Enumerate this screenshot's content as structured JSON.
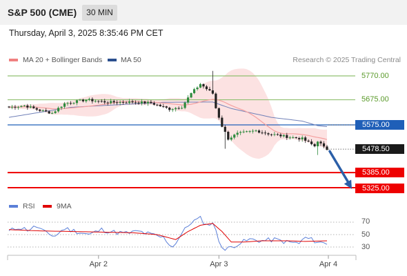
{
  "header": {
    "instrument": "S&P 500 (CME)",
    "timeframe": "30 MIN"
  },
  "datetime": "Thursday, April 3, 2025 8:35:46 PM CET",
  "copyright": "Research © 2025 Trading Central",
  "colors": {
    "ma20": "#f08080",
    "ma50": "#2b4f8e",
    "rsi": "#5b7fd8",
    "rsi_ma": "#e00000",
    "resistance": "#90c070",
    "support": "#ee0000",
    "pivot": "#1f5fb8",
    "up": "#2e8b3e",
    "down": "#222222",
    "arrow": "#2b5fa8",
    "price_badge": "#1a1a1a"
  },
  "chart_data": [
    {
      "type": "candlestick",
      "legend": [
        {
          "label": "MA 20 + Bollinger Bands",
          "color": "#f08080"
        },
        {
          "label": "MA 50",
          "color": "#2b4f8e"
        }
      ],
      "x_ticks": [
        {
          "label": "Apr 2",
          "index": 29
        },
        {
          "label": "Apr 3",
          "index": 68
        },
        {
          "label": "Apr 4",
          "index": 103
        }
      ],
      "n_bars": 104,
      "ylim": [
        5290,
        5800
      ],
      "levels": [
        {
          "label": "5770.00",
          "value": 5770,
          "kind": "resistance"
        },
        {
          "label": "5675.00",
          "value": 5675,
          "kind": "resistance"
        },
        {
          "label": "5575.00",
          "value": 5575,
          "kind": "pivot"
        },
        {
          "label": "5385.00",
          "value": 5385,
          "kind": "support"
        },
        {
          "label": "5325.00",
          "value": 5325,
          "kind": "support"
        }
      ],
      "last_price": {
        "label": "5478.50",
        "value": 5478.5
      },
      "projection": {
        "from_value": 5470,
        "to_value": 5320
      },
      "close_anchors": [
        [
          0,
          5645
        ],
        [
          5,
          5652
        ],
        [
          10,
          5633
        ],
        [
          14,
          5622
        ],
        [
          18,
          5660
        ],
        [
          25,
          5675
        ],
        [
          32,
          5665
        ],
        [
          40,
          5666
        ],
        [
          46,
          5662
        ],
        [
          52,
          5638
        ],
        [
          56,
          5647
        ],
        [
          59,
          5700
        ],
        [
          62,
          5738
        ],
        [
          64,
          5718
        ],
        [
          66,
          5700
        ],
        [
          67,
          5642
        ],
        [
          69,
          5570
        ],
        [
          71,
          5520
        ],
        [
          74,
          5540
        ],
        [
          80,
          5552
        ],
        [
          84,
          5540
        ],
        [
          90,
          5528
        ],
        [
          95,
          5520
        ],
        [
          99,
          5490
        ],
        [
          100,
          5512
        ],
        [
          102,
          5485
        ],
        [
          103,
          5478
        ]
      ],
      "ma50_anchors": [
        [
          0,
          5605
        ],
        [
          20,
          5645
        ],
        [
          50,
          5665
        ],
        [
          66,
          5666
        ],
        [
          72,
          5640
        ],
        [
          85,
          5605
        ],
        [
          95,
          5590
        ],
        [
          100,
          5572
        ],
        [
          103,
          5568
        ]
      ]
    },
    {
      "type": "line",
      "legend": [
        {
          "label": "RSI",
          "color": "#5b7fd8"
        },
        {
          "label": "9MA",
          "color": "#e00000"
        }
      ],
      "yticks": [
        {
          "label": "70",
          "value": 70
        },
        {
          "label": "50",
          "value": 50
        },
        {
          "label": "30",
          "value": 30
        }
      ],
      "ylim": [
        15,
        85
      ],
      "rsi_anchors": [
        [
          0,
          55
        ],
        [
          3,
          62
        ],
        [
          6,
          58
        ],
        [
          9,
          63
        ],
        [
          12,
          52
        ],
        [
          15,
          48
        ],
        [
          18,
          60
        ],
        [
          22,
          55
        ],
        [
          26,
          50
        ],
        [
          30,
          58
        ],
        [
          34,
          54
        ],
        [
          38,
          52
        ],
        [
          42,
          55
        ],
        [
          46,
          50
        ],
        [
          50,
          45
        ],
        [
          53,
          30
        ],
        [
          56,
          52
        ],
        [
          59,
          70
        ],
        [
          62,
          76
        ],
        [
          64,
          65
        ],
        [
          66,
          70
        ],
        [
          68,
          40
        ],
        [
          70,
          25
        ],
        [
          74,
          35
        ],
        [
          78,
          42
        ],
        [
          82,
          40
        ],
        [
          86,
          42
        ],
        [
          90,
          38
        ],
        [
          94,
          36
        ],
        [
          96,
          45
        ],
        [
          99,
          40
        ],
        [
          101,
          37
        ],
        [
          103,
          36
        ]
      ],
      "ma_anchors": [
        [
          0,
          58
        ],
        [
          10,
          56
        ],
        [
          20,
          55
        ],
        [
          30,
          54
        ],
        [
          40,
          53
        ],
        [
          48,
          50
        ],
        [
          54,
          42
        ],
        [
          58,
          55
        ],
        [
          62,
          65
        ],
        [
          66,
          68
        ],
        [
          69,
          55
        ],
        [
          72,
          38
        ],
        [
          76,
          38
        ],
        [
          82,
          40
        ],
        [
          90,
          40
        ],
        [
          96,
          39
        ],
        [
          103,
          40
        ]
      ]
    }
  ]
}
